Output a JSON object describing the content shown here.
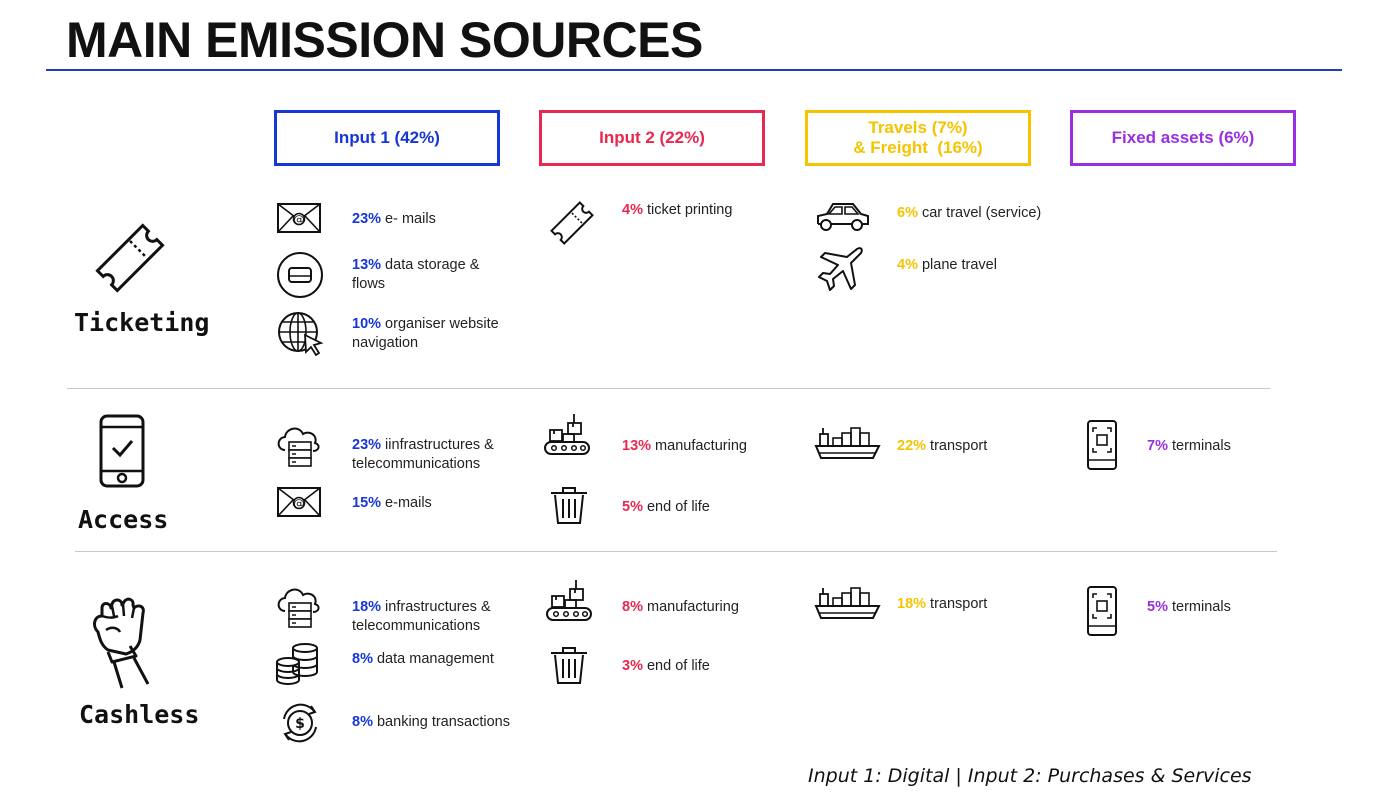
{
  "title": "MAIN EMISSION SOURCES",
  "categories": [
    {
      "label": "Input 1 (42%)",
      "color": "#1736d6"
    },
    {
      "label": "Input 2 (22%)",
      "color": "#e8284f"
    },
    {
      "label_line1": "Travels (7%)",
      "label_line2": "& Freight  (16%)",
      "color": "#f5c400"
    },
    {
      "label": "Fixed assets (6%)",
      "color": "#9a2fe0"
    }
  ],
  "sections": {
    "ticketing": {
      "label": "Ticketing",
      "items": [
        {
          "pct": "23%",
          "text": " e- mails",
          "icon": "envelope-icon"
        },
        {
          "pct": "13%",
          "text": " data storage & flows",
          "icon": "hard-drive-icon"
        },
        {
          "pct": "10%",
          "text": " organiser website navigation",
          "icon": "globe-cursor-icon"
        },
        {
          "pct": "4%",
          "text": " ticket printing",
          "icon": "ticket-icon"
        },
        {
          "pct": "6%",
          "text": " car travel (service)",
          "icon": "car-icon"
        },
        {
          "pct": "4%",
          "text": " plane travel",
          "icon": "plane-icon"
        }
      ]
    },
    "access": {
      "label": "Access",
      "items": [
        {
          "pct": "23%",
          "text": " iinfrastructures & telecommunications",
          "icon": "cloud-server-icon"
        },
        {
          "pct": "15%",
          "text": " e-mails",
          "icon": "envelope-icon"
        },
        {
          "pct": "13%",
          "text": " manufacturing",
          "icon": "conveyor-icon"
        },
        {
          "pct": "5%",
          "text": " end of life",
          "icon": "trash-icon"
        },
        {
          "pct": "22%",
          "text": " transport",
          "icon": "ship-icon"
        },
        {
          "pct": "7%",
          "text": " terminals",
          "icon": "terminal-icon"
        }
      ]
    },
    "cashless": {
      "label": "Cashless",
      "items": [
        {
          "pct": "18%",
          "text": " infrastructures & telecommunications",
          "icon": "cloud-server-icon"
        },
        {
          "pct": "8%",
          "text": " data management",
          "icon": "database-icon"
        },
        {
          "pct": "8%",
          "text": " banking transactions",
          "icon": "dollar-cycle-icon"
        },
        {
          "pct": "8%",
          "text": " manufacturing",
          "icon": "conveyor-icon"
        },
        {
          "pct": "3%",
          "text": " end of life",
          "icon": "trash-icon"
        },
        {
          "pct": "18%",
          "text": " transport",
          "icon": "ship-icon"
        },
        {
          "pct": "5%",
          "text": " terminals",
          "icon": "terminal-icon"
        }
      ]
    }
  },
  "caption": "Input 1: Digital | Input 2: Purchases & Services"
}
